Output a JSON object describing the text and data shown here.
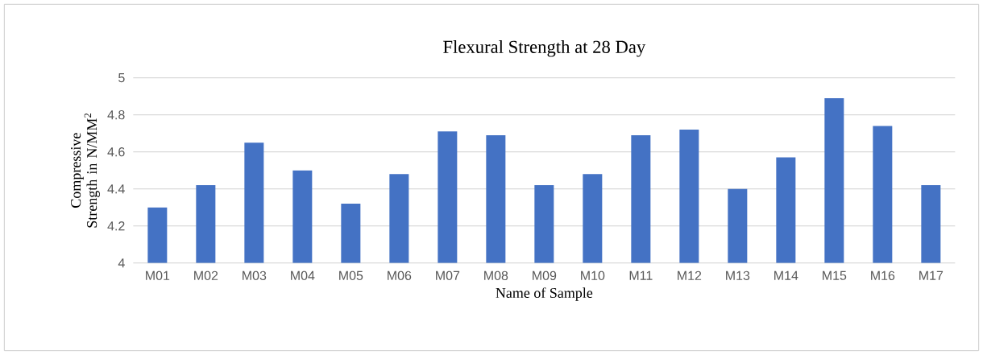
{
  "chart_data": {
    "type": "bar",
    "title": "Flexural Strength at 28 Day",
    "xlabel": "Name of Sample",
    "ylabel": "Compressive Strength in N/MM$^{2}$",
    "categories": [
      "M01",
      "M02",
      "M03",
      "M04",
      "M05",
      "M06",
      "M07",
      "M08",
      "M09",
      "M10",
      "M11",
      "M12",
      "M13",
      "M14",
      "M15",
      "M16",
      "M17"
    ],
    "values": [
      4.3,
      4.42,
      4.65,
      4.5,
      4.32,
      4.48,
      4.71,
      4.69,
      4.42,
      4.48,
      4.69,
      4.72,
      4.4,
      4.57,
      4.89,
      4.74,
      4.42
    ],
    "color": "#4472c4",
    "ylim": [
      4,
      5
    ],
    "yticks": [
      4,
      4.2,
      4.4,
      4.6,
      4.8,
      5
    ],
    "grid": "y"
  }
}
